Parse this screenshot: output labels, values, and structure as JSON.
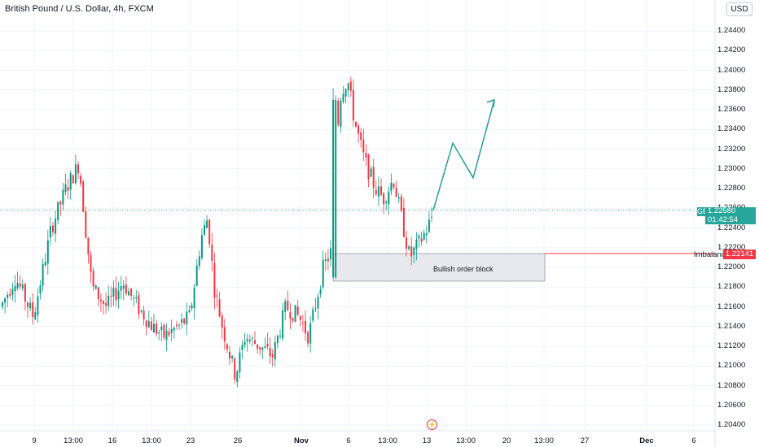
{
  "header": {
    "symbol_title": "British Pound / U.S. Dollar, 4h, FXCM",
    "currency_button": "USD"
  },
  "price_scale": {
    "ticks": [
      "1.24400",
      "1.24200",
      "1.24000",
      "1.23800",
      "1.23600",
      "1.23400",
      "1.23200",
      "1.23000",
      "1.22800",
      "1.22600",
      "1.22400",
      "1.22200",
      "1.22000",
      "1.21800",
      "1.21600",
      "1.21400",
      "1.21200",
      "1.21000",
      "1.20800",
      "1.20600",
      "1.20400"
    ]
  },
  "time_scale": {
    "ticks": [
      {
        "label": "9",
        "bold": false
      },
      {
        "label": "13:00",
        "bold": false
      },
      {
        "label": "16",
        "bold": false
      },
      {
        "label": "13:00",
        "bold": false
      },
      {
        "label": "23",
        "bold": false
      },
      {
        "label": "26",
        "bold": false
      },
      {
        "label": "Nov",
        "bold": true
      },
      {
        "label": "6",
        "bold": false
      },
      {
        "label": "13:00",
        "bold": false
      },
      {
        "label": "13",
        "bold": false
      },
      {
        "label": "13:00",
        "bold": false
      },
      {
        "label": "20",
        "bold": false
      },
      {
        "label": "13:00",
        "bold": false
      },
      {
        "label": "27",
        "bold": false
      },
      {
        "label": "Dec",
        "bold": true
      },
      {
        "label": "6",
        "bold": false
      }
    ]
  },
  "last_price": {
    "ticker": "GBPUSD",
    "price": "1.22580",
    "countdown": "01:42:54",
    "value": 1.2258
  },
  "imbalance": {
    "label": "Imbalance",
    "price": "1.22141",
    "value": 1.22141
  },
  "order_block": {
    "label": "Bullish order block",
    "top": 1.2214,
    "bottom": 1.2186
  },
  "projection_path": [
    1.2258,
    1.2326,
    1.2291,
    1.237
  ],
  "colors": {
    "up": "#089981",
    "down": "#f23645",
    "projection": "#2a9d8f",
    "price_tag": "#26a69a",
    "imbalance": "#f23645",
    "grid": "#f0f3fa"
  },
  "icons": {
    "bolt": "lightning-bolt-icon",
    "arrow": "arrow-up-right-icon"
  }
}
